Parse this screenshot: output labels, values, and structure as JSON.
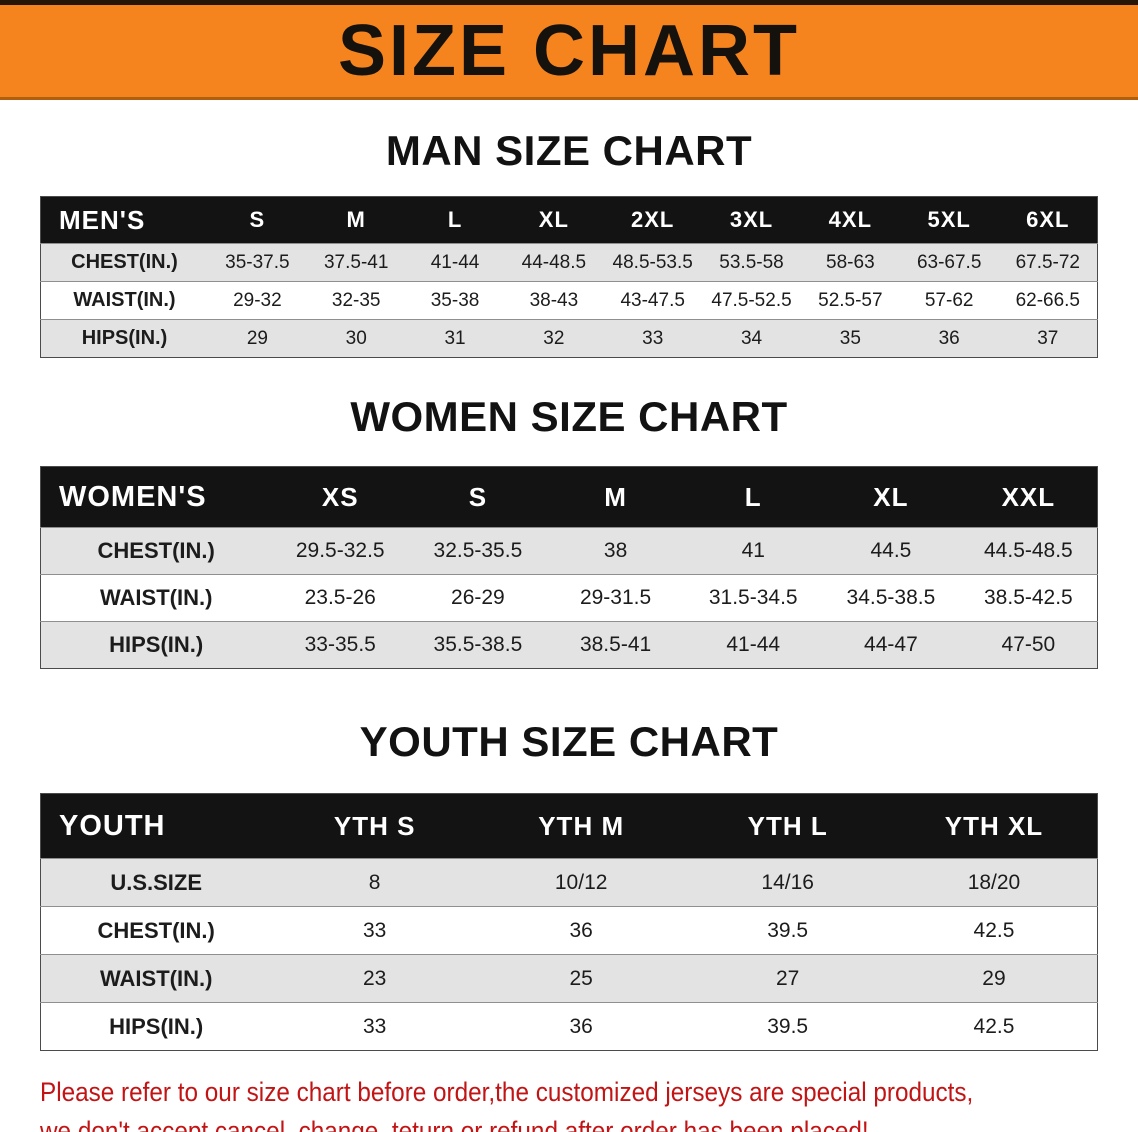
{
  "banner": {
    "title": "SIZE CHART",
    "bg_color": "#F5841F",
    "title_color": "#15110C"
  },
  "chart_data": [
    {
      "type": "table",
      "title": "MAN SIZE CHART",
      "header": [
        "MEN'S",
        "S",
        "M",
        "L",
        "XL",
        "2XL",
        "3XL",
        "4XL",
        "5XL",
        "6XL"
      ],
      "rows": [
        [
          "CHEST(IN.)",
          "35-37.5",
          "37.5-41",
          "41-44",
          "44-48.5",
          "48.5-53.5",
          "53.5-58",
          "58-63",
          "63-67.5",
          "67.5-72"
        ],
        [
          "WAIST(IN.)",
          "29-32",
          "32-35",
          "35-38",
          "38-43",
          "43-47.5",
          "47.5-52.5",
          "52.5-57",
          "57-62",
          "62-66.5"
        ],
        [
          "HIPS(IN.)",
          "29",
          "30",
          "31",
          "32",
          "33",
          "34",
          "35",
          "36",
          "37"
        ]
      ]
    },
    {
      "type": "table",
      "title": "WOMEN SIZE CHART",
      "header": [
        "WOMEN'S",
        "XS",
        "S",
        "M",
        "L",
        "XL",
        "XXL"
      ],
      "rows": [
        [
          "CHEST(IN.)",
          "29.5-32.5",
          "32.5-35.5",
          "38",
          "41",
          "44.5",
          "44.5-48.5"
        ],
        [
          "WAIST(IN.)",
          "23.5-26",
          "26-29",
          "29-31.5",
          "31.5-34.5",
          "34.5-38.5",
          "38.5-42.5"
        ],
        [
          "HIPS(IN.)",
          "33-35.5",
          "35.5-38.5",
          "38.5-41",
          "41-44",
          "44-47",
          "47-50"
        ]
      ]
    },
    {
      "type": "table",
      "title": "YOUTH SIZE CHART",
      "header": [
        "YOUTH",
        "YTH S",
        "YTH M",
        "YTH L",
        "YTH XL"
      ],
      "rows": [
        [
          "U.S.SIZE",
          "8",
          "10/12",
          "14/16",
          "18/20"
        ],
        [
          "CHEST(IN.)",
          "33",
          "36",
          "39.5",
          "42.5"
        ],
        [
          "WAIST(IN.)",
          "23",
          "25",
          "27",
          "29"
        ],
        [
          "HIPS(IN.)",
          "33",
          "36",
          "39.5",
          "42.5"
        ]
      ]
    }
  ],
  "footer": {
    "line1": "Please refer to our size chart before order,the customized jerseys are special products,",
    "line2": "we don't accept cancel, change, teturn or refund after order has been placed!",
    "text_color": "#C21414"
  },
  "colors": {
    "banner_orange": "#F5841F",
    "table_header_black": "#131313",
    "row_shade_gray": "#E3E3E3",
    "footer_red": "#C21414"
  }
}
